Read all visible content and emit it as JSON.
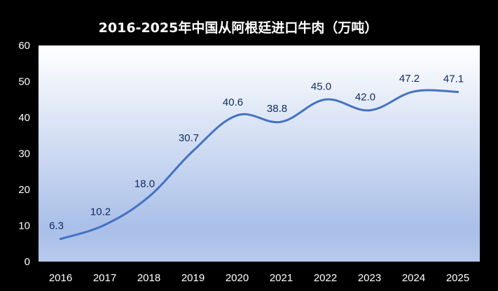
{
  "chart_data": {
    "type": "line",
    "title": "2016-2025年中国从阿根廷进口牛肉（万吨）",
    "xlabel": "",
    "ylabel": "",
    "categories": [
      "2016",
      "2017",
      "2018",
      "2019",
      "2020",
      "2021",
      "2022",
      "2023",
      "2024",
      "2025"
    ],
    "values": [
      6.3,
      10.2,
      18.0,
      30.7,
      40.6,
      38.8,
      45.0,
      42.0,
      47.2,
      47.1
    ],
    "data_labels": [
      "6.3",
      "10.2",
      "18.0",
      "30.7",
      "40.6",
      "38.8",
      "45.0",
      "42.0",
      "47.2",
      "47.1"
    ],
    "y_ticks": [
      "0",
      "10",
      "20",
      "30",
      "40",
      "50",
      "60"
    ],
    "ylim": [
      0,
      60
    ],
    "line_color": "#4472c4",
    "plot_background": [
      "#ffffff",
      "#a9bfe8"
    ],
    "grid": false,
    "legend": "none",
    "smooth": true
  }
}
